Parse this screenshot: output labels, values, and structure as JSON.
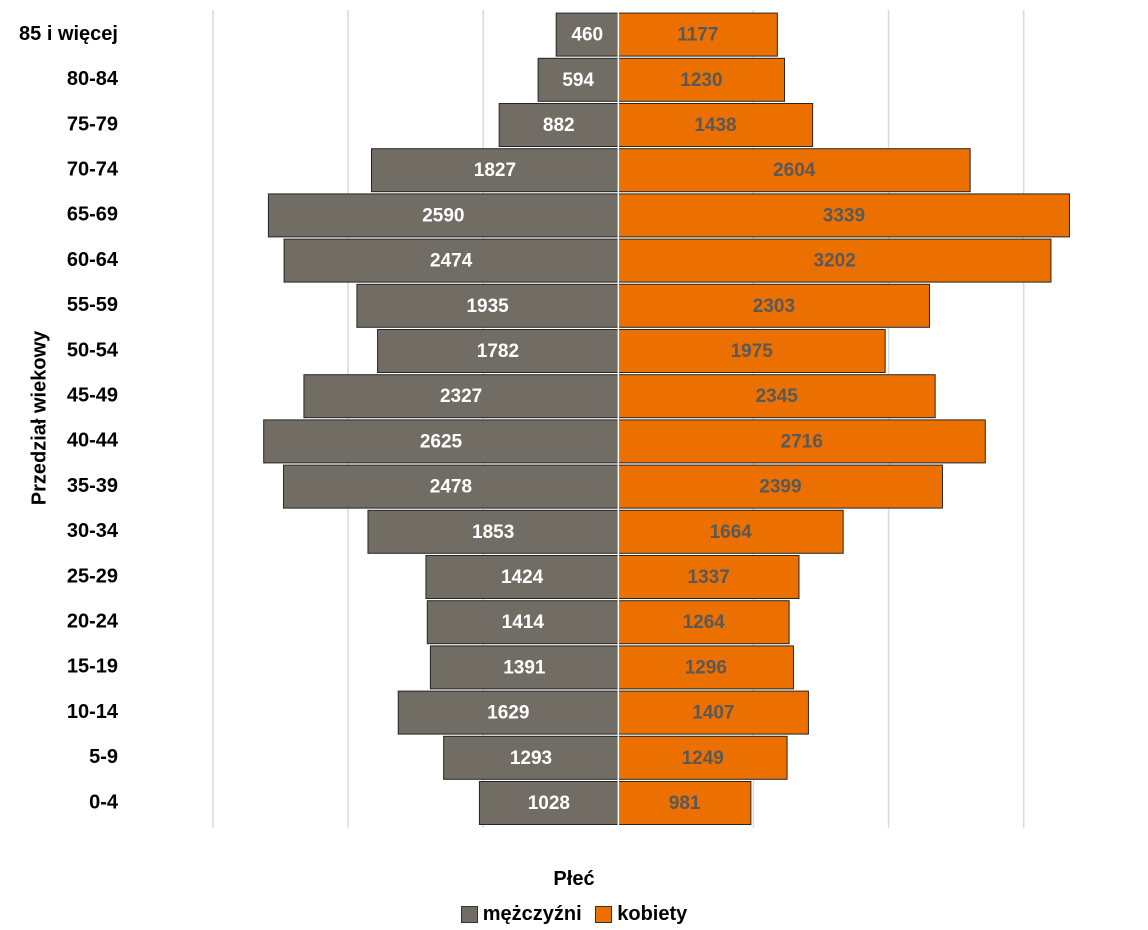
{
  "chart_data": {
    "type": "bar",
    "orientation": "horizontal",
    "layout": "population-pyramid",
    "categories": [
      "85 i więcej",
      "80-84",
      "75-79",
      "70-74",
      "65-69",
      "60-64",
      "55-59",
      "50-54",
      "45-49",
      "40-44",
      "35-39",
      "30-34",
      "25-29",
      "20-24",
      "15-19",
      "10-14",
      "5-9",
      "0-4"
    ],
    "series": [
      {
        "name": "mężczyźni",
        "color": "#716d64",
        "label_color": "#ffffff",
        "values": [
          460,
          594,
          882,
          1827,
          2590,
          2474,
          1935,
          1782,
          2327,
          2625,
          2478,
          1853,
          1424,
          1414,
          1391,
          1629,
          1293,
          1028
        ]
      },
      {
        "name": "kobiety",
        "color": "#ec7000",
        "label_color": "#595959",
        "values": [
          1177,
          1230,
          1438,
          2604,
          3339,
          3202,
          2303,
          1975,
          2345,
          2716,
          2399,
          1664,
          1337,
          1264,
          1296,
          1407,
          1249,
          981
        ]
      }
    ],
    "xlim": [
      -3000,
      3750
    ],
    "ylabel": "Przedział wiekowy",
    "legend_title": "Płeć",
    "legend_position": "bottom",
    "grid": true
  }
}
